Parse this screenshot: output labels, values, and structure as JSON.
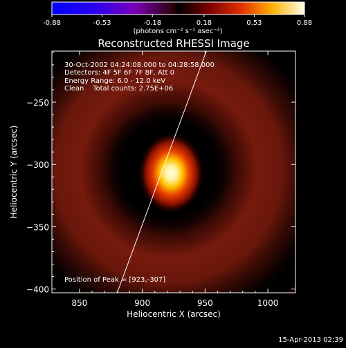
{
  "colorbar": {
    "ticks": [
      "-0.88",
      "-0.53",
      "-0.18",
      "0.18",
      "0.53",
      "0.88"
    ],
    "values": [
      -0.88,
      -0.53,
      -0.18,
      0.18,
      0.53,
      0.88
    ],
    "unit_label": "(photons cm⁻² s⁻¹ asec⁻²)",
    "range": [
      -0.88,
      0.88
    ]
  },
  "chart_data": {
    "type": "heatmap",
    "title": "Reconstructed RHESSI Image",
    "xlabel": "Heliocentric X (arcsec)",
    "ylabel": "Heliocentric Y (arcsec)",
    "xlim": [
      828,
      1022
    ],
    "ylim": [
      -403,
      -209
    ],
    "x_ticks": [
      850,
      900,
      950,
      1000
    ],
    "y_ticks": [
      -250,
      -300,
      -350,
      -400
    ],
    "x_tick_labels": [
      "850",
      "900",
      "950",
      "1000"
    ],
    "y_tick_labels": [
      "−250",
      "−300",
      "−350",
      "−400"
    ],
    "peak": {
      "x": 923,
      "y": -307,
      "value": 0.88
    },
    "ring": {
      "center_x": 921,
      "center_y": -304,
      "radius": 72,
      "value": 0.17
    },
    "limb_line": [
      [
        880,
        -403
      ],
      [
        951,
        -209
      ]
    ],
    "annotations": [
      "30-Oct-2002 04:24:08.000 to 04:28:58.000",
      "Detectors: 4F 5F 6F 7F 8F, Att 0",
      "Energy Range: 6.0 - 12.0 keV",
      "Clean    Total counts: 2.75E+06"
    ],
    "peak_text": "Position of Peak = [923,-307]"
  },
  "footer": {
    "timestamp": "15-Apr-2013 02:39"
  }
}
